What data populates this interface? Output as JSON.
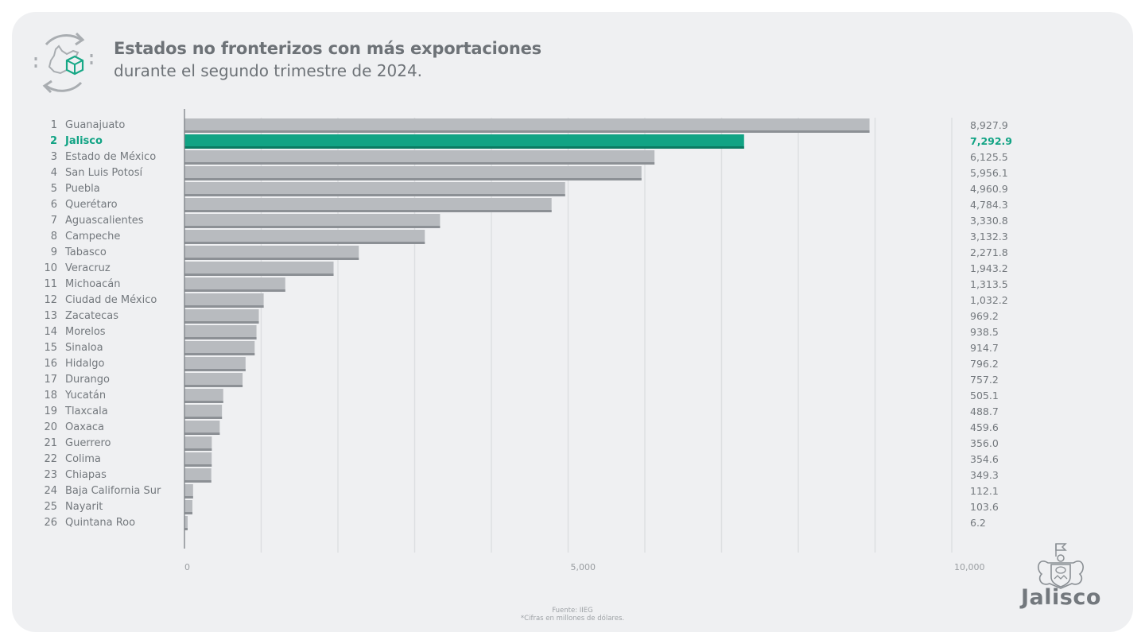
{
  "header": {
    "title": "Estados no fronterizos con más exportaciones",
    "subtitle": "durante el segundo trimestre de 2024.",
    "icon": "export-cycle-icon"
  },
  "colors": {
    "bar": "#b8bbbf",
    "bar_shadow": "#8c9095",
    "highlight": "#11a384",
    "highlight_shadow": "#0a7a62",
    "grid": "#dcdee1",
    "axis": "#7b8085"
  },
  "chart_data": {
    "type": "bar",
    "orientation": "horizontal",
    "title": "Estados no fronterizos con más exportaciones",
    "subtitle": "durante el segundo trimestre de 2024.",
    "xlabel": "",
    "ylabel": "",
    "xlim": [
      0,
      10000
    ],
    "x_ticks": [
      0,
      5000,
      10000
    ],
    "x_tick_labels": [
      "0",
      "5,000",
      "10,000"
    ],
    "gridline_step": 1000,
    "grid": true,
    "highlight_index": 1,
    "ranks": [
      "1",
      "2",
      "3",
      "4",
      "5",
      "6",
      "7",
      "8",
      "9",
      "10",
      "11",
      "12",
      "13",
      "14",
      "15",
      "16",
      "17",
      "18",
      "19",
      "20",
      "21",
      "22",
      "23",
      "24",
      "25",
      "26"
    ],
    "categories": [
      "Guanajuato",
      "Jalisco",
      "Estado de México",
      "San Luis Potosí",
      "Puebla",
      "Querétaro",
      "Aguascalientes",
      "Campeche",
      "Tabasco",
      "Veracruz",
      "Michoacán",
      "Ciudad de México",
      "Zacatecas",
      "Morelos",
      "Sinaloa",
      "Hidalgo",
      "Durango",
      "Yucatán",
      "Tlaxcala",
      "Oaxaca",
      "Guerrero",
      "Colima",
      "Chiapas",
      "Baja California Sur",
      "Nayarit",
      "Quintana Roo"
    ],
    "values": [
      8927.9,
      7292.9,
      6125.5,
      5956.1,
      4960.9,
      4784.3,
      3330.8,
      3132.3,
      2271.8,
      1943.2,
      1313.5,
      1032.2,
      969.2,
      938.5,
      914.7,
      796.2,
      757.2,
      505.1,
      488.7,
      459.6,
      356.0,
      354.6,
      349.3,
      112.1,
      103.6,
      6.2
    ],
    "value_labels": [
      "8,927.9",
      "7,292.9",
      "6,125.5",
      "5,956.1",
      "4,960.9",
      "4,784.3",
      "3,330.8",
      "3,132.3",
      "2,271.8",
      "1,943.2",
      "1,313.5",
      "1,032.2",
      "969.2",
      "938.5",
      "914.7",
      "796.2",
      "757.2",
      "505.1",
      "488.7",
      "459.6",
      "356.0",
      "354.6",
      "349.3",
      "112.1",
      "103.6",
      "6.2"
    ]
  },
  "footer": {
    "source": "Fuente: IIEG",
    "note": "*Cifras en millones de dólares."
  },
  "logo": {
    "text": "Jalisco",
    "icon": "jalisco-coat-of-arms-icon"
  }
}
